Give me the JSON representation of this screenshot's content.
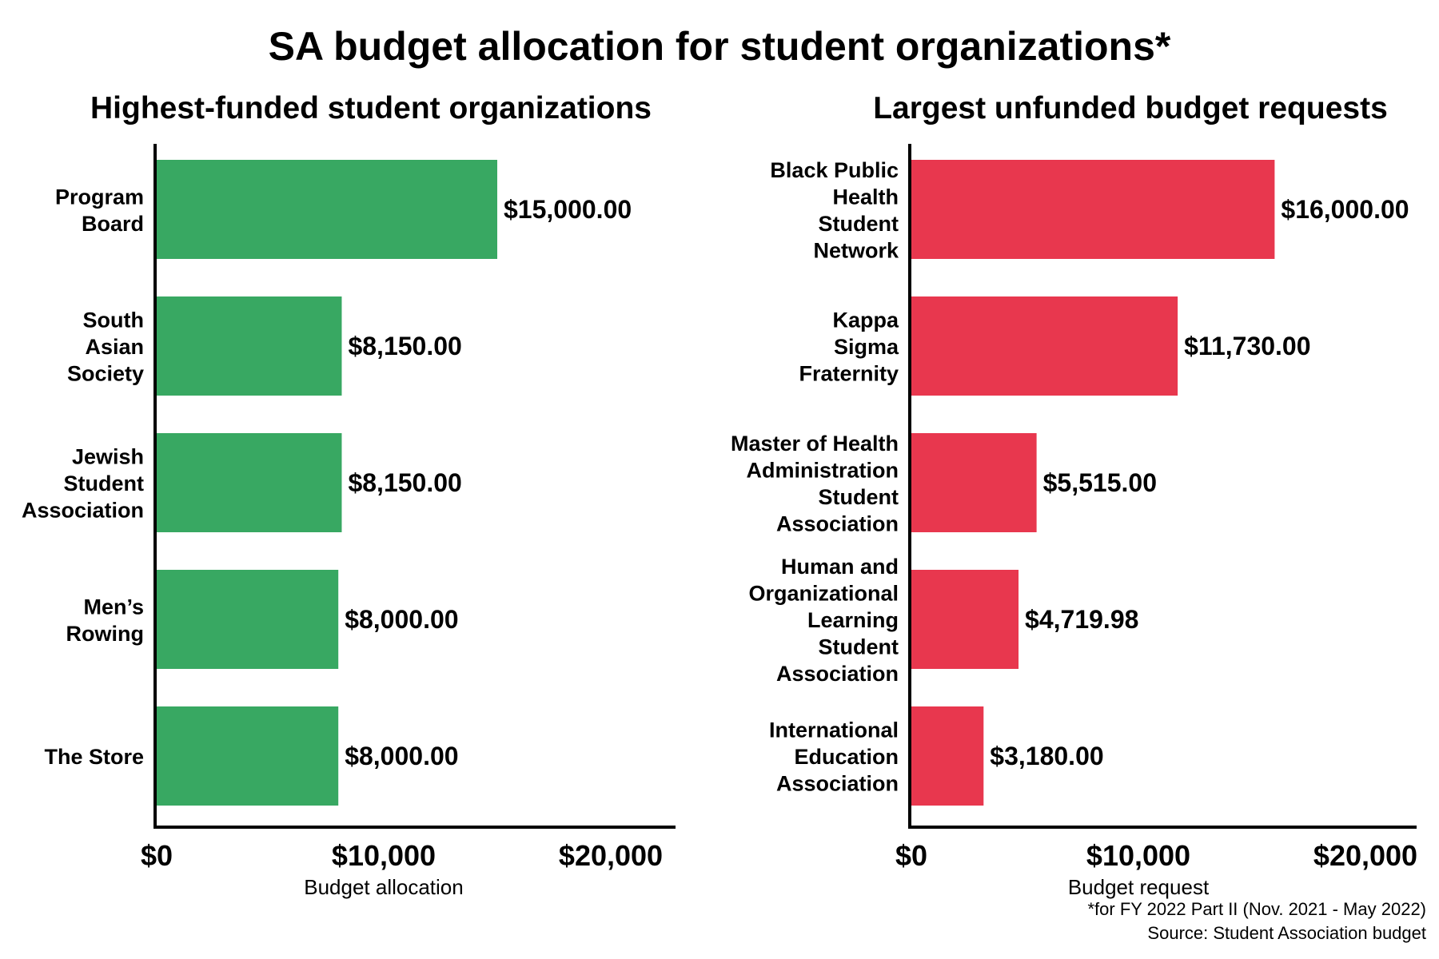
{
  "title": "SA budget allocation for student organizations*",
  "footnote": "*for FY 2022 Part II (Nov. 2021 - May 2022)",
  "source": "Source: Student Association budget",
  "chart_data": [
    {
      "type": "bar",
      "orientation": "horizontal",
      "title": "Highest-funded student organizations",
      "xlabel": "Budget allocation",
      "ylabel": "",
      "xlim": [
        0,
        23000
      ],
      "xticks": [
        0,
        10000,
        20000
      ],
      "xtick_labels": [
        "$0",
        "$10,000",
        "$20,000"
      ],
      "grid": false,
      "color": "#38a862",
      "categories": [
        [
          "Program",
          "Board"
        ],
        [
          "South",
          "Asian",
          "Society"
        ],
        [
          "Jewish",
          "Student",
          "Association"
        ],
        [
          "Men’s",
          "Rowing"
        ],
        [
          "The Store"
        ]
      ],
      "values": [
        15000,
        8150,
        8150,
        8000,
        8000
      ],
      "value_labels": [
        "$15,000.00",
        "$8,150.00",
        "$8,150.00",
        "$8,000.00",
        "$8,000.00"
      ]
    },
    {
      "type": "bar",
      "orientation": "horizontal",
      "title": "Largest unfunded budget requests",
      "xlabel": "Budget request",
      "ylabel": "",
      "xlim": [
        0,
        23000
      ],
      "xticks": [
        0,
        10000,
        20000
      ],
      "xtick_labels": [
        "$0",
        "$10,000",
        "$20,000"
      ],
      "grid": false,
      "color": "#e8374e",
      "categories": [
        [
          "Black Public",
          "Health",
          "Student",
          "Network"
        ],
        [
          "Kappa",
          "Sigma",
          "Fraternity"
        ],
        [
          "Master of Health",
          "Administration",
          "Student",
          "Association"
        ],
        [
          "Human and",
          "Organizational",
          "Learning",
          "Student",
          "Association"
        ],
        [
          "International",
          "Education",
          "Association"
        ]
      ],
      "values": [
        16000,
        11730,
        5515,
        4719.98,
        3180
      ],
      "value_labels": [
        "$16,000.00",
        "$11,730.00",
        "$5,515.00",
        "$4,719.98",
        "$3,180.00"
      ]
    }
  ]
}
